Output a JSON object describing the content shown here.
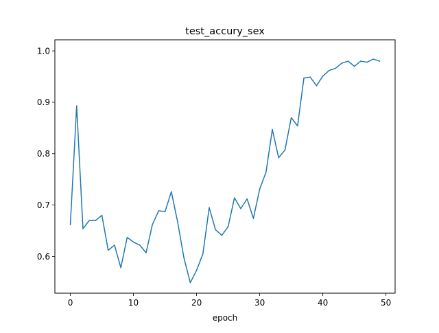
{
  "chart_data": {
    "type": "line",
    "title": "test_accury_sex",
    "xlabel": "epoch",
    "ylabel": "",
    "xlim": [
      -2.45,
      51.45
    ],
    "ylim": [
      0.5285,
      1.0215
    ],
    "xticks": [
      0,
      10,
      20,
      30,
      40,
      50
    ],
    "yticks": [
      0.6,
      0.7,
      0.8,
      0.9,
      1.0
    ],
    "xtick_labels": [
      "0",
      "10",
      "20",
      "30",
      "40",
      "50"
    ],
    "ytick_labels": [
      "0.6",
      "0.7",
      "0.8",
      "0.9",
      "1.0"
    ],
    "grid": false,
    "legend": "none",
    "series": [
      {
        "color": "#1f77b4",
        "x": [
          0,
          1,
          2,
          3,
          4,
          5,
          6,
          7,
          8,
          9,
          10,
          11,
          12,
          13,
          14,
          15,
          16,
          17,
          18,
          19,
          20,
          21,
          22,
          23,
          24,
          25,
          26,
          27,
          28,
          29,
          30,
          31,
          32,
          33,
          34,
          35,
          36,
          37,
          38,
          39,
          40,
          41,
          42,
          43,
          44,
          45,
          46,
          47,
          48,
          49
        ],
        "y": [
          0.662,
          0.893,
          0.654,
          0.67,
          0.67,
          0.68,
          0.612,
          0.622,
          0.578,
          0.637,
          0.628,
          0.622,
          0.607,
          0.662,
          0.689,
          0.687,
          0.726,
          0.667,
          0.597,
          0.549,
          0.573,
          0.605,
          0.695,
          0.652,
          0.641,
          0.658,
          0.714,
          0.693,
          0.712,
          0.674,
          0.731,
          0.764,
          0.847,
          0.792,
          0.807,
          0.87,
          0.854,
          0.947,
          0.949,
          0.932,
          0.951,
          0.962,
          0.966,
          0.976,
          0.98,
          0.97,
          0.98,
          0.978,
          0.984,
          0.98
        ]
      }
    ]
  }
}
